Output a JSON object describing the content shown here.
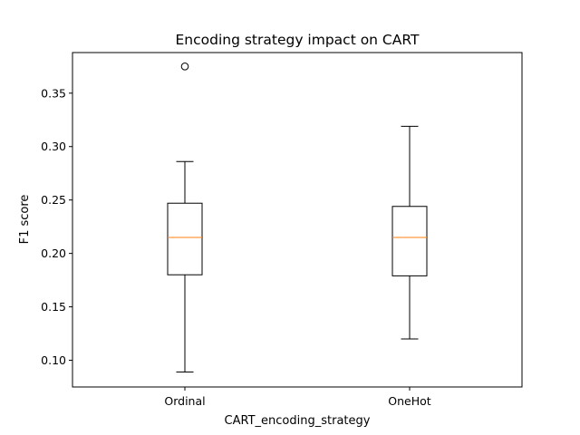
{
  "chart_data": {
    "type": "boxplot",
    "title": "Encoding strategy impact on CART",
    "xlabel": "CART_encoding_strategy",
    "ylabel": "F1 score",
    "ylim": [
      0.075,
      0.388
    ],
    "yticks": [
      0.1,
      0.15,
      0.2,
      0.25,
      0.3,
      0.35
    ],
    "ytick_labels": [
      "0.10",
      "0.15",
      "0.20",
      "0.25",
      "0.30",
      "0.35"
    ],
    "categories": [
      "Ordinal",
      "OneHot"
    ],
    "boxes": [
      {
        "category": "Ordinal",
        "whisker_low": 0.089,
        "q1": 0.18,
        "median": 0.215,
        "q3": 0.247,
        "whisker_high": 0.286,
        "outliers": [
          0.375
        ]
      },
      {
        "category": "OneHot",
        "whisker_low": 0.12,
        "q1": 0.179,
        "median": 0.215,
        "q3": 0.244,
        "whisker_high": 0.319,
        "outliers": []
      }
    ],
    "grid": false,
    "colors": {
      "box": "#000000",
      "median": "#ff7f0e",
      "outlier": "#000000"
    }
  }
}
